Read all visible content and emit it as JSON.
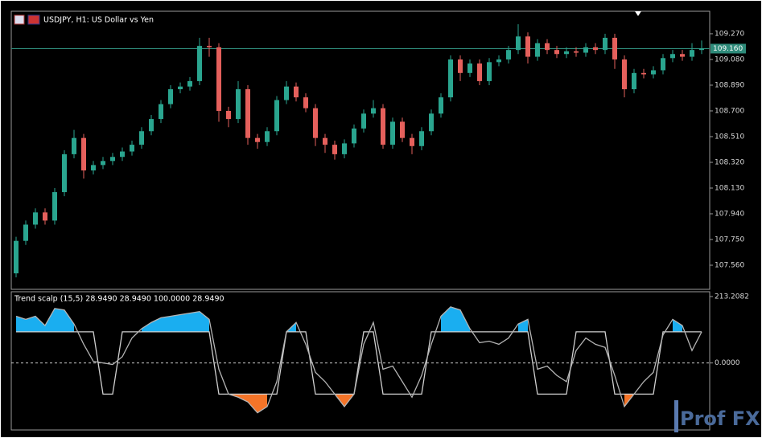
{
  "chart_data": [
    {
      "type": "candlestick",
      "title": "USDJPY, H1:  US Dollar vs Yen",
      "up_color": "#2aa58f",
      "down_color": "#e5605c",
      "open": [
        107.5,
        107.74,
        107.86,
        107.95,
        107.89,
        108.1,
        108.38,
        108.5,
        108.26,
        108.3,
        108.33,
        108.36,
        108.4,
        108.45,
        108.55,
        108.64,
        108.75,
        108.86,
        108.88,
        108.92,
        109.18,
        109.17,
        108.7,
        108.64,
        108.86,
        108.5,
        108.47,
        108.55,
        108.78,
        108.88,
        108.8,
        108.72,
        108.5,
        108.45,
        108.38,
        108.46,
        108.57,
        108.68,
        108.72,
        108.45,
        108.62,
        108.5,
        108.44,
        108.55,
        108.68,
        108.8,
        109.08,
        108.98,
        109.05,
        108.92,
        109.06,
        109.08,
        109.15,
        109.25,
        109.1,
        109.2,
        109.15,
        109.12,
        109.14,
        109.13,
        109.17,
        109.15,
        109.24,
        109.08,
        108.86,
        108.98,
        108.97,
        109.0,
        109.09,
        109.12,
        109.1,
        109.15
      ],
      "high": [
        107.77,
        107.89,
        107.98,
        107.98,
        108.13,
        108.41,
        108.56,
        108.53,
        108.33,
        108.36,
        108.39,
        108.43,
        108.48,
        108.58,
        108.67,
        108.78,
        108.89,
        108.91,
        108.95,
        109.24,
        109.24,
        109.2,
        108.73,
        108.92,
        108.89,
        108.53,
        108.58,
        108.81,
        108.92,
        108.91,
        108.83,
        108.75,
        108.53,
        108.48,
        108.49,
        108.6,
        108.71,
        108.78,
        108.75,
        108.65,
        108.65,
        108.53,
        108.58,
        108.71,
        108.83,
        109.11,
        109.11,
        109.08,
        109.08,
        109.09,
        109.11,
        109.18,
        109.34,
        109.28,
        109.23,
        109.23,
        109.18,
        109.17,
        109.17,
        109.2,
        109.2,
        109.27,
        109.27,
        109.11,
        109.01,
        109.01,
        109.03,
        109.12,
        109.15,
        109.15,
        109.2,
        109.22
      ],
      "low": [
        107.47,
        107.71,
        107.83,
        107.86,
        107.86,
        108.07,
        108.35,
        108.2,
        108.23,
        108.27,
        108.3,
        108.33,
        108.37,
        108.42,
        108.52,
        108.61,
        108.72,
        108.83,
        108.85,
        108.89,
        109.1,
        108.62,
        108.58,
        108.61,
        108.45,
        108.42,
        108.44,
        108.52,
        108.75,
        108.77,
        108.69,
        108.44,
        108.39,
        108.34,
        108.35,
        108.43,
        108.54,
        108.65,
        108.42,
        108.42,
        108.47,
        108.38,
        108.41,
        108.52,
        108.65,
        108.77,
        108.92,
        108.95,
        108.89,
        108.89,
        109.03,
        109.05,
        109.12,
        109.05,
        109.07,
        109.12,
        109.09,
        109.09,
        109.1,
        109.1,
        109.12,
        109.12,
        109.01,
        108.8,
        108.83,
        108.94,
        108.94,
        108.97,
        109.06,
        109.07,
        109.07,
        109.12
      ],
      "close": [
        107.74,
        107.86,
        107.95,
        107.89,
        108.1,
        108.38,
        108.5,
        108.26,
        108.3,
        108.33,
        108.36,
        108.4,
        108.45,
        108.55,
        108.64,
        108.75,
        108.86,
        108.88,
        108.92,
        109.18,
        109.17,
        108.7,
        108.64,
        108.86,
        108.5,
        108.47,
        108.55,
        108.78,
        108.88,
        108.8,
        108.72,
        108.5,
        108.45,
        108.38,
        108.46,
        108.57,
        108.68,
        108.72,
        108.45,
        108.62,
        108.5,
        108.44,
        108.55,
        108.68,
        108.8,
        109.08,
        108.98,
        109.05,
        108.92,
        109.06,
        109.08,
        109.15,
        109.25,
        109.1,
        109.2,
        109.15,
        109.12,
        109.14,
        109.13,
        109.17,
        109.15,
        109.24,
        109.08,
        108.86,
        108.98,
        108.97,
        109.0,
        109.09,
        109.12,
        109.1,
        109.15,
        109.16
      ],
      "ylim": [
        107.382,
        109.436
      ],
      "yticks": [
        {
          "value": 109.27,
          "label": "109.270"
        },
        {
          "value": 109.08,
          "label": "109.080"
        },
        {
          "value": 108.89,
          "label": "108.890"
        },
        {
          "value": 108.7,
          "label": "108.700"
        },
        {
          "value": 108.51,
          "label": "108.510"
        },
        {
          "value": 108.32,
          "label": "108.320"
        },
        {
          "value": 108.13,
          "label": "108.130"
        },
        {
          "value": 107.94,
          "label": "107.940"
        },
        {
          "value": 107.75,
          "label": "107.750"
        },
        {
          "value": 107.56,
          "label": "107.560"
        }
      ],
      "price_line": {
        "value": 109.16,
        "label": "109.160"
      },
      "price_line_color": "#2e8b7a"
    },
    {
      "type": "oscillator",
      "title": "Trend scalp (15,5) 28.9490 28.9490 100.0000 28.9490",
      "series": [
        {
          "color": "#b4b4b4",
          "values": [
            150,
            140,
            150,
            120,
            175,
            170,
            125,
            60,
            5,
            0,
            -5,
            20,
            80,
            110,
            130,
            145,
            150,
            155,
            160,
            165,
            140,
            -20,
            -100,
            -110,
            -125,
            -160,
            -140,
            -60,
            100,
            130,
            60,
            -30,
            -60,
            -100,
            -140,
            -100,
            60,
            130,
            -20,
            -10,
            -60,
            -110,
            -40,
            60,
            150,
            180,
            170,
            110,
            65,
            70,
            60,
            80,
            125,
            140,
            -20,
            -10,
            -40,
            -60,
            40,
            80,
            60,
            50,
            -40,
            -140,
            -100,
            -60,
            -30,
            90,
            140,
            120,
            40,
            100
          ]
        },
        {
          "color": "#d0d0d0",
          "values": [
            100,
            100,
            100,
            100,
            100,
            100,
            100,
            100,
            100,
            -100,
            -100,
            100,
            100,
            100,
            100,
            100,
            100,
            100,
            100,
            100,
            100,
            -100,
            -100,
            -100,
            -100,
            -100,
            -100,
            -100,
            100,
            100,
            100,
            -100,
            -100,
            -100,
            -100,
            -100,
            100,
            100,
            -100,
            -100,
            -100,
            -100,
            -100,
            100,
            100,
            100,
            100,
            100,
            100,
            100,
            100,
            100,
            100,
            100,
            -100,
            -100,
            -100,
            -100,
            100,
            100,
            100,
            100,
            -100,
            -100,
            -100,
            -100,
            -100,
            100,
            100,
            100,
            100,
            100
          ]
        }
      ],
      "up_fill": "#1aaef0",
      "down_fill": "#f47428",
      "ylim": [
        -215,
        228.6
      ],
      "yticks": [
        213.2082,
        {
          "value": 0,
          "label": "0.0000"
        }
      ]
    }
  ],
  "watermark": "Prof FX"
}
